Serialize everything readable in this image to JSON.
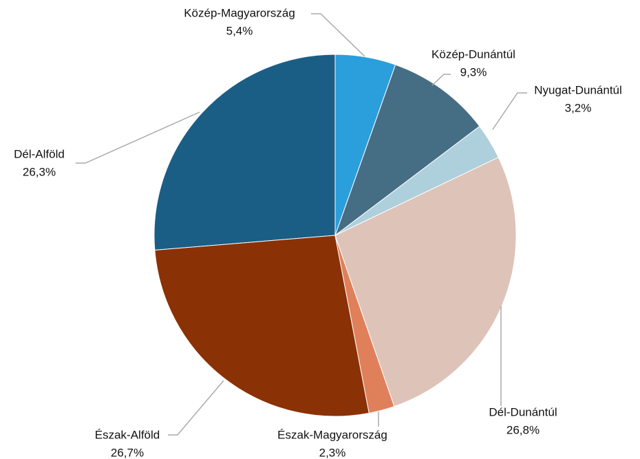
{
  "chart_data": {
    "type": "pie",
    "categories": [
      "Közép-Magyarország",
      "Közép-Dunántúl",
      "Nyugat-Dunántúl",
      "Dél-Dunántúl",
      "Észak-Magyarország",
      "Észak-Alföld",
      "Dél-Alföld"
    ],
    "values": [
      5.4,
      9.3,
      3.2,
      26.8,
      2.3,
      26.7,
      26.3
    ],
    "value_labels": [
      "5,4%",
      "9,3%",
      "3,2%",
      "26,8%",
      "2,3%",
      "26,7%",
      "26,3%"
    ],
    "colors": [
      "#2a9fdb",
      "#456e85",
      "#aecfdc",
      "#dec3b9",
      "#e0805a",
      "#8a3105",
      "#1b5e85"
    ]
  }
}
